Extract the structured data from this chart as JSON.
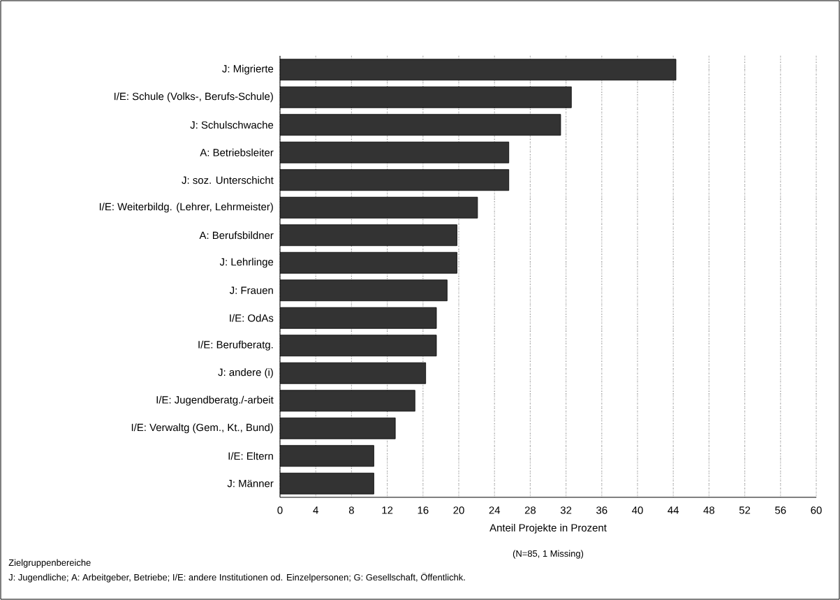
{
  "chart_data": {
    "type": "bar",
    "orientation": "horizontal",
    "categories": [
      "J: Migrierte",
      "I/E: Schule (Volks-, Berufs-Schule)",
      "J: Schulschwache",
      "A: Betriebsleiter",
      "J: soz. Unterschicht",
      "I/E: Weiterbildg. (Lehrer, Lehrmeister)",
      "A: Berufsbildner",
      "J: Lehrlinge",
      "J: Frauen",
      "I/E: OdAs",
      "I/E: Berufberatg.",
      "J: andere (i)",
      "I/E: Jugendberatg./-arbeit",
      "I/E: Verwaltg (Gem., Kt., Bund)",
      "I/E: Eltern",
      "J: Männer"
    ],
    "values": [
      44.3,
      32.6,
      31.4,
      25.6,
      25.6,
      22.1,
      19.8,
      19.8,
      18.7,
      17.5,
      17.5,
      16.3,
      15.1,
      12.9,
      10.5,
      10.5
    ],
    "color": "#333333",
    "xlim": [
      0,
      60
    ],
    "xticks": [
      0,
      4,
      8,
      12,
      16,
      20,
      24,
      28,
      32,
      36,
      40,
      44,
      48,
      52,
      56,
      60
    ],
    "grid": "x",
    "xlabel": "Anteil Projekte in Prozent",
    "annotations": [
      "(N=85, 1 Missing)",
      "Zielgruppenbereiche",
      "J: Jugendliche;  A: Arbeitgeber, Betriebe;  I/E: andere Institutionen od. Einzelpersonen; G: Gesellschaft, Öffentlichk."
    ]
  }
}
